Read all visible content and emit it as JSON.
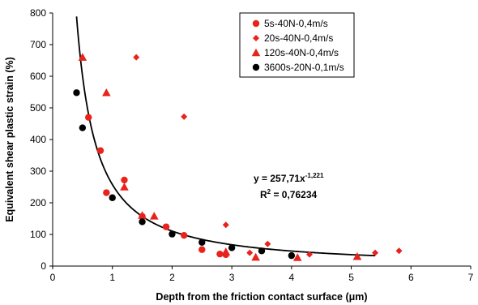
{
  "chart_data": {
    "type": "scatter",
    "xlabel": "Depth from the friction contact surface (μm)",
    "ylabel": "Equivalent shear plastic strain (%)",
    "xlim": [
      0,
      7
    ],
    "ylim": [
      0,
      800
    ],
    "xticks": [
      "0",
      "1",
      "2",
      "3",
      "4",
      "5",
      "6",
      "7"
    ],
    "yticks": [
      "0",
      "100",
      "200",
      "300",
      "400",
      "500",
      "600",
      "700",
      "800"
    ],
    "grid": false,
    "legend_position": "top-right",
    "colors": {
      "red": "#e8231c",
      "black": "#000000",
      "curve": "#000000"
    },
    "series": [
      {
        "name": "5s-40N-0,4m/s",
        "marker": "circle",
        "color": "#e8231c",
        "points": [
          [
            0.6,
            470
          ],
          [
            0.8,
            365
          ],
          [
            0.9,
            232
          ],
          [
            1.2,
            272
          ],
          [
            1.5,
            157
          ],
          [
            1.9,
            124
          ],
          [
            2.2,
            97
          ],
          [
            2.5,
            52
          ],
          [
            2.8,
            38
          ],
          [
            2.9,
            36
          ]
        ]
      },
      {
        "name": "20s-40N-0,4m/s",
        "marker": "diamond",
        "color": "#e8231c",
        "points": [
          [
            1.4,
            660
          ],
          [
            2.2,
            472
          ],
          [
            2.9,
            130
          ],
          [
            3.3,
            42
          ],
          [
            3.6,
            70
          ],
          [
            4.3,
            37
          ],
          [
            5.4,
            42
          ],
          [
            5.8,
            48
          ]
        ]
      },
      {
        "name": "120s-40N-0,4m/s",
        "marker": "triangle",
        "color": "#e8231c",
        "points": [
          [
            0.5,
            660
          ],
          [
            0.9,
            548
          ],
          [
            1.2,
            250
          ],
          [
            1.5,
            160
          ],
          [
            1.7,
            158
          ],
          [
            2.9,
            45
          ],
          [
            3.4,
            28
          ],
          [
            4.1,
            27
          ],
          [
            5.1,
            30
          ]
        ]
      },
      {
        "name": "3600s-20N-0,1m/s",
        "marker": "circle",
        "color": "#000000",
        "points": [
          [
            0.4,
            548
          ],
          [
            0.5,
            437
          ],
          [
            1.0,
            216
          ],
          [
            1.5,
            140
          ],
          [
            2.0,
            101
          ],
          [
            2.5,
            75
          ],
          [
            3.0,
            58
          ],
          [
            3.5,
            48
          ],
          [
            4.0,
            33
          ]
        ]
      }
    ],
    "fit": {
      "a": 257.71,
      "b": -1.221,
      "x_range": [
        0.4,
        5.4
      ],
      "equation_main": "y = 257,71x",
      "equation_exp": "-1,221",
      "r2_label": "R",
      "r2_sup": "2",
      "r2_value": " = 0,76234"
    }
  }
}
